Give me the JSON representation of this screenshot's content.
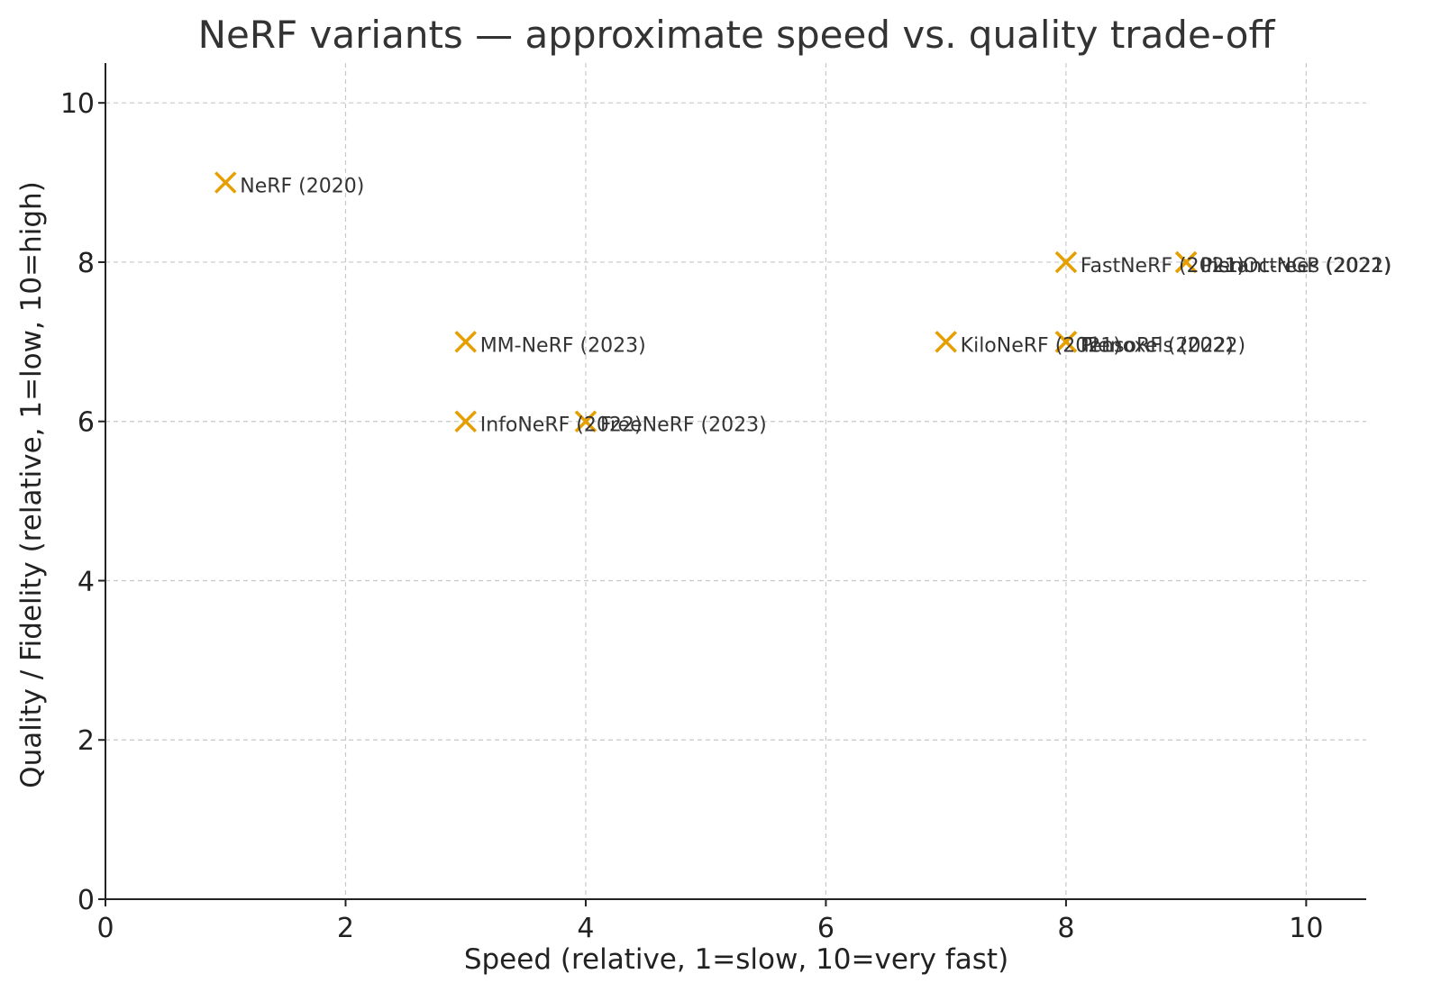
{
  "chart_data": {
    "type": "scatter",
    "title": "NeRF variants — approximate speed vs. quality trade-off",
    "xlabel": "Speed (relative, 1=slow, 10=very fast)",
    "ylabel": "Quality / Fidelity (relative, 1=low, 10=high)",
    "xlim": [
      0,
      10.5
    ],
    "ylim": [
      0,
      10.5
    ],
    "xticks": [
      0,
      2,
      4,
      6,
      8,
      10
    ],
    "yticks": [
      0,
      2,
      4,
      6,
      8,
      10
    ],
    "grid": true,
    "marker": "x",
    "marker_color": "#E69F00",
    "points": [
      {
        "label": "NeRF (2020)",
        "x": 1,
        "y": 9
      },
      {
        "label": "FastNeRF (2021)",
        "x": 8,
        "y": 8
      },
      {
        "label": "PlenOctrees (2021)",
        "x": 9,
        "y": 8
      },
      {
        "label": "Instant-NGP (2022)",
        "x": 9,
        "y": 8
      },
      {
        "label": "MM-NeRF (2023)",
        "x": 3,
        "y": 7
      },
      {
        "label": "KiloNeRF (2021)",
        "x": 7,
        "y": 7
      },
      {
        "label": "TensoRF (2022)",
        "x": 8,
        "y": 7
      },
      {
        "label": "Plenoxels (2022)",
        "x": 8,
        "y": 7
      },
      {
        "label": "InfoNeRF (2022)",
        "x": 3,
        "y": 6
      },
      {
        "label": "FreeNeRF (2023)",
        "x": 4,
        "y": 6
      }
    ]
  }
}
